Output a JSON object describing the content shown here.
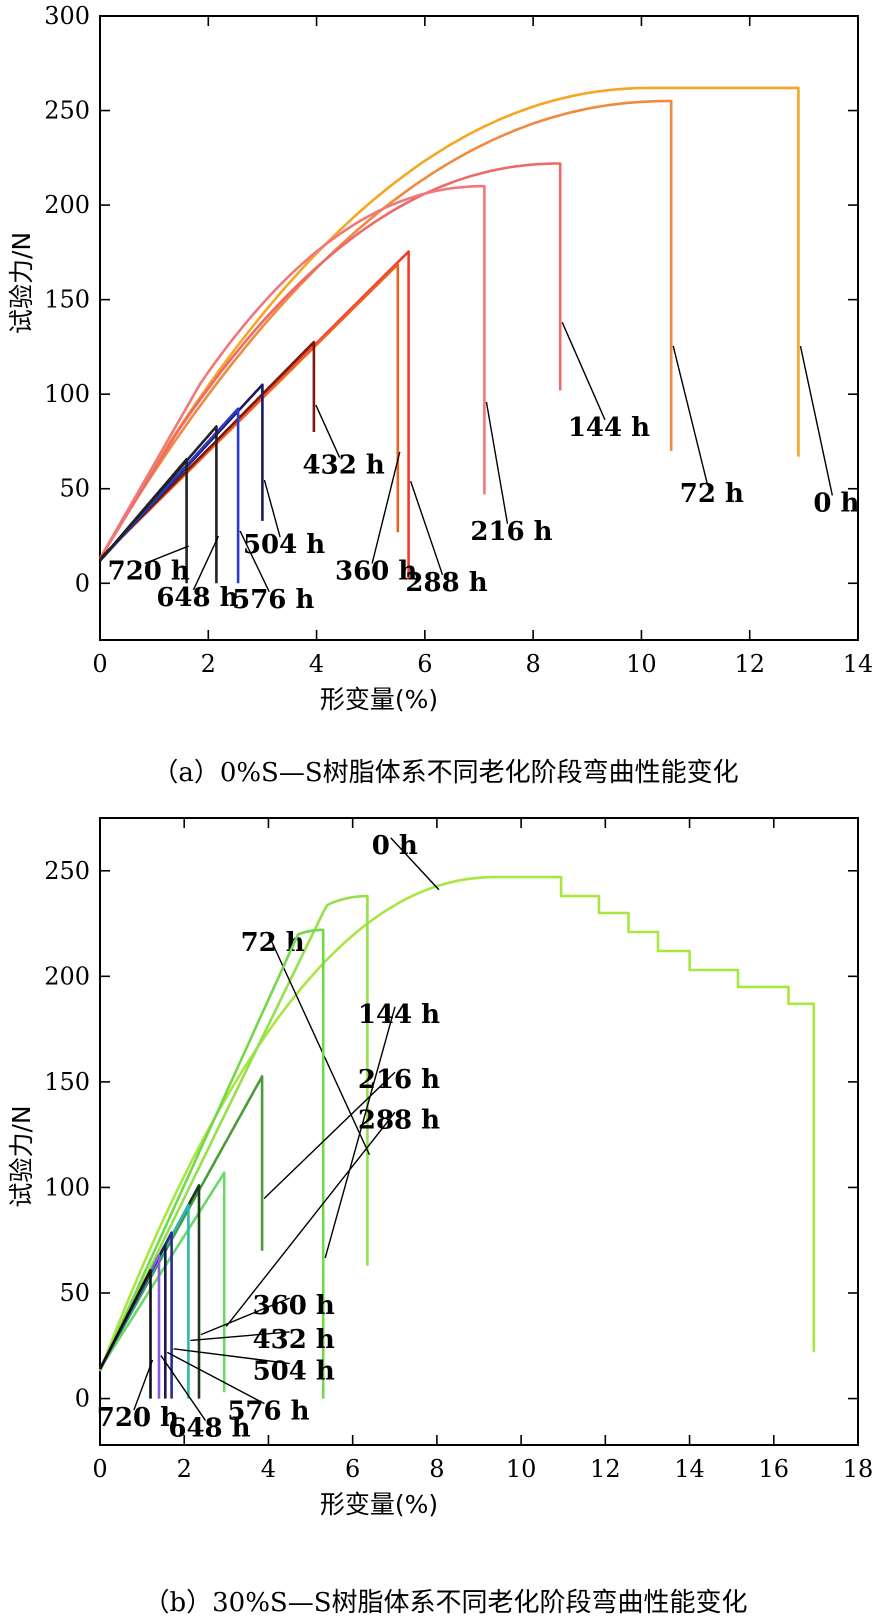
{
  "chart_data": [
    {
      "type": "line",
      "title": "",
      "caption": "（a）0%S—S树脂体系不同老化阶段弯曲性能变化",
      "xlabel": "形变量(%)",
      "ylabel": "试验力/N",
      "xlim": [
        0,
        14
      ],
      "ylim": [
        -30,
        300
      ],
      "xticks": [
        0,
        2,
        4,
        6,
        8,
        10,
        12,
        14
      ],
      "yticks": [
        0,
        50,
        100,
        150,
        200,
        250,
        300
      ],
      "grid": false,
      "series": [
        {
          "name": "0 h",
          "color": "#f5a623",
          "label_color": "#000000",
          "curve": "hump",
          "k": 54,
          "ymax": 262,
          "plateau_x": 10.2,
          "break_x": 12.9,
          "drop_to": 67,
          "label_at": [
            13.6,
            38
          ]
        },
        {
          "name": "72 h",
          "color": "#f08a3c",
          "label_color": "#000000",
          "curve": "hump",
          "k": 50,
          "ymax": 255,
          "plateau_x": 10.5,
          "break_x": 10.55,
          "drop_to": 70,
          "label_at": [
            11.3,
            43
          ]
        },
        {
          "name": "144 h",
          "color": "#ee6a6a",
          "label_color": "#000000",
          "curve": "hump",
          "k": 47,
          "ymax": 222,
          "plateau_x": 8.5,
          "break_x": 8.5,
          "drop_to": 102,
          "label_at": [
            9.4,
            78
          ]
        },
        {
          "name": "216 h",
          "color": "#f07878",
          "label_color": "#000000",
          "curve": "hump",
          "k": 50,
          "ymax": 210,
          "plateau_x": 7.1,
          "break_x": 7.1,
          "drop_to": 47,
          "label_at": [
            7.6,
            23
          ]
        },
        {
          "name": "288 h",
          "color": "#f03a2a",
          "label_color": "#000000",
          "curve": "line",
          "slope": 28.5,
          "y0": 13,
          "break_x": 5.7,
          "drop_to": 2,
          "label_at": [
            6.4,
            -4
          ]
        },
        {
          "name": "360 h",
          "color": "#f06020",
          "label_color": "#000000",
          "curve": "line",
          "slope": 28.3,
          "y0": 13,
          "break_x": 5.5,
          "drop_to": 27,
          "label_at": [
            5.1,
            2
          ]
        },
        {
          "name": "432 h",
          "color": "#7a1a12",
          "label_color": "#000000",
          "curve": "line",
          "slope": 29.0,
          "y0": 13,
          "break_x": 3.95,
          "drop_to": 80,
          "label_at": [
            4.5,
            58
          ]
        },
        {
          "name": "504 h",
          "color": "#1a1a60",
          "label_color": "#000000",
          "curve": "line",
          "slope": 31.0,
          "y0": 12,
          "break_x": 3.0,
          "drop_to": 33,
          "label_at": [
            3.4,
            16
          ]
        },
        {
          "name": "576 h",
          "color": "#2a3acc",
          "label_color": "#000000",
          "curve": "line",
          "slope": 31.5,
          "y0": 12,
          "break_x": 2.55,
          "drop_to": 0,
          "label_at": [
            3.2,
            -13
          ]
        },
        {
          "name": "648 h",
          "color": "#222222",
          "label_color": "#000000",
          "curve": "line",
          "slope": 33.0,
          "y0": 12,
          "break_x": 2.15,
          "drop_to": 0,
          "label_at": [
            1.8,
            -12
          ]
        },
        {
          "name": "720 h",
          "color": "#222222",
          "label_color": "#000000",
          "curve": "line",
          "slope": 33.5,
          "y0": 12,
          "break_x": 1.6,
          "drop_to": 0,
          "label_at": [
            0.9,
            2
          ]
        }
      ]
    },
    {
      "type": "line",
      "title": "",
      "caption": "（b）30%S—S树脂体系不同老化阶段弯曲性能变化",
      "xlabel": "形变量(%)",
      "ylabel": "试验力/N",
      "xlim": [
        0,
        18
      ],
      "ylim": [
        -22,
        275
      ],
      "xticks": [
        0,
        2,
        4,
        6,
        8,
        10,
        12,
        14,
        16,
        18
      ],
      "yticks": [
        0,
        50,
        100,
        150,
        200,
        250
      ],
      "grid": false,
      "series": [
        {
          "name": "0 h",
          "color": "#a8e640",
          "label_color": "#000000",
          "curve": "hump",
          "k": 62,
          "ymax": 247,
          "plateau_x": 9.4,
          "break_x": 10.95,
          "steps": [
            [
              10.95,
              238
            ],
            [
              11.85,
              230
            ],
            [
              12.55,
              221
            ],
            [
              13.25,
              212
            ],
            [
              14.0,
              203
            ],
            [
              15.15,
              195
            ],
            [
              16.35,
              187
            ],
            [
              16.95,
              22
            ]
          ],
          "label_at": [
            7.0,
            258
          ]
        },
        {
          "name": "72 h",
          "color": "#96e04a",
          "label_color": "#000000",
          "curve": "hump",
          "k": 41,
          "ymax": 238,
          "plateau_x": 6.35,
          "break_x": 6.35,
          "drop_to": 63,
          "label_at": [
            4.1,
            212
          ]
        },
        {
          "name": "144 h",
          "color": "#72d84a",
          "label_color": "#000000",
          "curve": "hump",
          "k": 44,
          "ymax": 222,
          "plateau_x": 5.3,
          "break_x": 5.3,
          "drop_to": 0,
          "label_at": [
            7.1,
            178
          ]
        },
        {
          "name": "216 h",
          "color": "#4a9c3a",
          "label_color": "#000000",
          "curve": "line",
          "slope": 36.0,
          "y0": 14,
          "break_x": 3.85,
          "drop_to": 70,
          "label_at": [
            7.1,
            147
          ]
        },
        {
          "name": "288 h",
          "color": "#6ad86a",
          "label_color": "#000000",
          "curve": "line",
          "slope": 31.5,
          "y0": 14,
          "break_x": 2.95,
          "drop_to": 3,
          "label_at": [
            7.1,
            128
          ]
        },
        {
          "name": "360 h",
          "color": "#1e3a1e",
          "label_color": "#000000",
          "curve": "line",
          "slope": 37.0,
          "y0": 14,
          "break_x": 2.35,
          "drop_to": 0,
          "label_at": [
            4.6,
            40
          ]
        },
        {
          "name": "432 h",
          "color": "#2ab8b0",
          "label_color": "#000000",
          "curve": "line",
          "slope": 37.0,
          "y0": 14,
          "break_x": 2.1,
          "drop_to": 0,
          "label_at": [
            4.6,
            24
          ]
        },
        {
          "name": "504 h",
          "color": "#2a2a90",
          "label_color": "#000000",
          "curve": "line",
          "slope": 38.0,
          "y0": 14,
          "break_x": 1.7,
          "drop_to": 0,
          "label_at": [
            4.6,
            9
          ]
        },
        {
          "name": "576 h",
          "color": "#1a1a50",
          "label_color": "#000000",
          "curve": "line",
          "slope": 38.0,
          "y0": 14,
          "break_x": 1.55,
          "drop_to": 0,
          "label_at": [
            4.0,
            -10
          ]
        },
        {
          "name": "648 h",
          "color": "#8a5ad8",
          "label_color": "#000000",
          "curve": "line",
          "slope": 38.5,
          "y0": 14,
          "break_x": 1.4,
          "drop_to": 0,
          "label_at": [
            2.6,
            -18
          ]
        },
        {
          "name": "720 h",
          "color": "#111111",
          "label_color": "#000000",
          "curve": "line",
          "slope": 39.0,
          "y0": 14,
          "break_x": 1.2,
          "drop_to": 0,
          "label_at": [
            0.9,
            -13
          ]
        }
      ]
    }
  ]
}
